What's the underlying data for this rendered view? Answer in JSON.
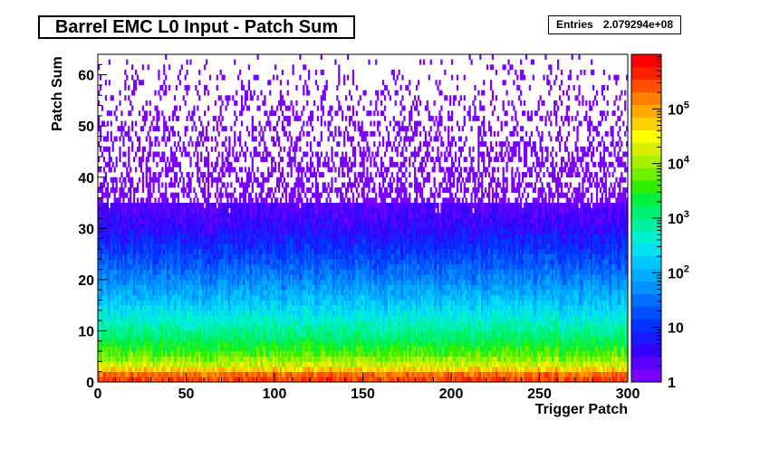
{
  "chart_data": {
    "type": "heatmap",
    "title": "Barrel EMC L0 Input - Patch Sum",
    "xlabel": "Trigger Patch",
    "ylabel": "Patch Sum",
    "xlim": [
      0,
      300
    ],
    "ylim": [
      0,
      64
    ],
    "x_ticks": [
      0,
      50,
      100,
      150,
      200,
      250,
      300
    ],
    "y_ticks": [
      0,
      10,
      20,
      30,
      40,
      50,
      60
    ],
    "z_scale": "log",
    "zlim": [
      1,
      1000000
    ],
    "z_tick_labels": [
      {
        "base": "1",
        "exp": ""
      },
      {
        "base": "10",
        "exp": ""
      },
      {
        "base": "10",
        "exp": "2"
      },
      {
        "base": "10",
        "exp": "3"
      },
      {
        "base": "10",
        "exp": "4"
      },
      {
        "base": "10",
        "exp": "5"
      }
    ],
    "z_tick_values": [
      1,
      10,
      100,
      1000,
      10000,
      100000
    ],
    "stats": {
      "label": "Entries",
      "value": "2.079294e+08"
    },
    "profile": [
      {
        "y": 0,
        "z": 300000
      },
      {
        "y": 1,
        "z": 200000
      },
      {
        "y": 2,
        "z": 60000
      },
      {
        "y": 3,
        "z": 15000
      },
      {
        "y": 5,
        "z": 5000
      },
      {
        "y": 8,
        "z": 1500
      },
      {
        "y": 12,
        "z": 400
      },
      {
        "y": 16,
        "z": 120
      },
      {
        "y": 20,
        "z": 40
      },
      {
        "y": 25,
        "z": 12
      },
      {
        "y": 30,
        "z": 4
      },
      {
        "y": 35,
        "z": 2
      },
      {
        "y": 40,
        "z": 1.2
      },
      {
        "y": 63,
        "z": 1
      }
    ],
    "palette": [
      "#7a00ff",
      "#5a00ff",
      "#3600ff",
      "#1a1aff",
      "#0033ff",
      "#0050ff",
      "#0070ff",
      "#0090ff",
      "#00aaff",
      "#00c8ff",
      "#00e0f0",
      "#00f0d0",
      "#00f0a0",
      "#00f070",
      "#00f040",
      "#30f000",
      "#70f000",
      "#a8f000",
      "#d8f000",
      "#ffff00",
      "#ffd000",
      "#ffa800",
      "#ff8000",
      "#ff5000",
      "#ff2000",
      "#ff0000"
    ]
  }
}
